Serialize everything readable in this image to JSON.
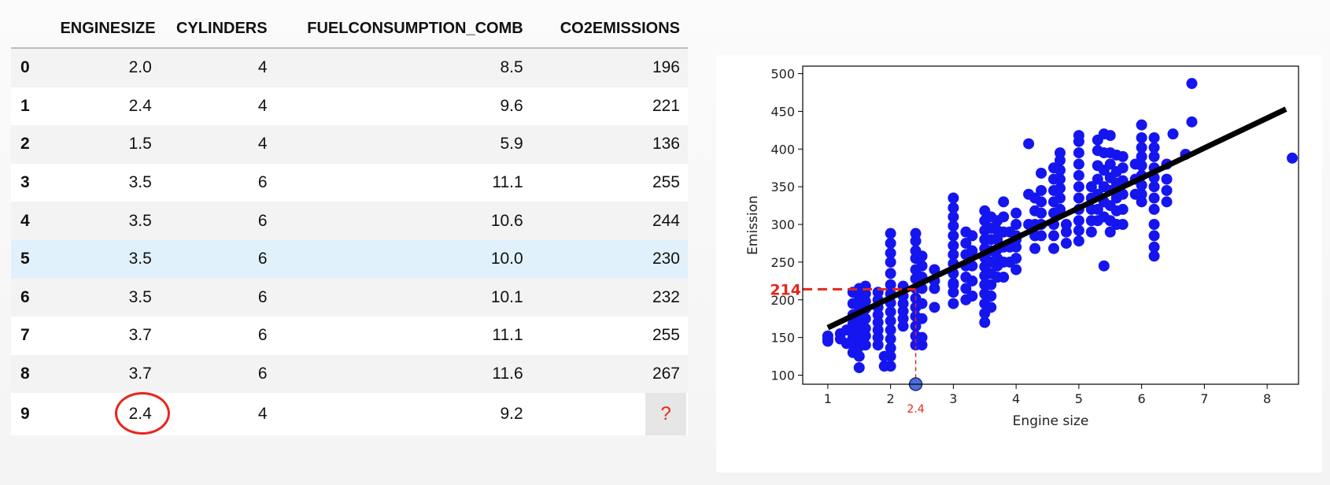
{
  "table": {
    "columns": [
      "",
      "ENGINESIZE",
      "CYLINDERS",
      "FUELCONSUMPTION_COMB",
      "CO2EMISSIONS"
    ],
    "rows": [
      {
        "idx": "0",
        "engine": "2.0",
        "cyl": "4",
        "fuel": "8.5",
        "co2": "196"
      },
      {
        "idx": "1",
        "engine": "2.4",
        "cyl": "4",
        "fuel": "9.6",
        "co2": "221"
      },
      {
        "idx": "2",
        "engine": "1.5",
        "cyl": "4",
        "fuel": "5.9",
        "co2": "136"
      },
      {
        "idx": "3",
        "engine": "3.5",
        "cyl": "6",
        "fuel": "11.1",
        "co2": "255"
      },
      {
        "idx": "4",
        "engine": "3.5",
        "cyl": "6",
        "fuel": "10.6",
        "co2": "244"
      },
      {
        "idx": "5",
        "engine": "3.5",
        "cyl": "6",
        "fuel": "10.0",
        "co2": "230"
      },
      {
        "idx": "6",
        "engine": "3.5",
        "cyl": "6",
        "fuel": "10.1",
        "co2": "232"
      },
      {
        "idx": "7",
        "engine": "3.7",
        "cyl": "6",
        "fuel": "11.1",
        "co2": "255"
      },
      {
        "idx": "8",
        "engine": "3.7",
        "cyl": "6",
        "fuel": "11.6",
        "co2": "267"
      },
      {
        "idx": "9",
        "engine": "2.4",
        "cyl": "4",
        "fuel": "9.2",
        "co2": "?"
      }
    ],
    "highlight_row": 5,
    "circled_value": "2.4",
    "colors": {
      "highlight": "#e1f1fb",
      "circle": "#e8251c",
      "question": "#e3271a"
    }
  },
  "chart_data": {
    "type": "scatter",
    "xlabel": "Engine size",
    "ylabel": "Emission",
    "xlim": [
      0.6,
      8.5
    ],
    "ylim": [
      88,
      510
    ],
    "xticks": [
      1,
      2,
      3,
      4,
      5,
      6,
      7,
      8
    ],
    "yticks": [
      100,
      150,
      200,
      250,
      300,
      350,
      400,
      450,
      500
    ],
    "point_color": "#1515f0",
    "fit_line": {
      "x": [
        1.0,
        8.3
      ],
      "y": [
        163,
        453
      ],
      "color": "#000000"
    },
    "prediction": {
      "x": 2.4,
      "y": 214,
      "x_label": "2.4",
      "y_label": "214",
      "color": "#e3271a",
      "marker_color": "#4f6fd8"
    },
    "points": [
      [
        1.0,
        148
      ],
      [
        1.0,
        152
      ],
      [
        1.0,
        145
      ],
      [
        1.2,
        155
      ],
      [
        1.2,
        148
      ],
      [
        1.3,
        160
      ],
      [
        1.3,
        142
      ],
      [
        1.4,
        150
      ],
      [
        1.4,
        158
      ],
      [
        1.4,
        168
      ],
      [
        1.4,
        180
      ],
      [
        1.4,
        195
      ],
      [
        1.4,
        210
      ],
      [
        1.4,
        140
      ],
      [
        1.4,
        130
      ],
      [
        1.5,
        110
      ],
      [
        1.5,
        125
      ],
      [
        1.5,
        138
      ],
      [
        1.5,
        145
      ],
      [
        1.5,
        155
      ],
      [
        1.5,
        165
      ],
      [
        1.5,
        175
      ],
      [
        1.5,
        185
      ],
      [
        1.5,
        195
      ],
      [
        1.5,
        205
      ],
      [
        1.5,
        215
      ],
      [
        1.6,
        140
      ],
      [
        1.6,
        152
      ],
      [
        1.6,
        162
      ],
      [
        1.6,
        175
      ],
      [
        1.6,
        188
      ],
      [
        1.6,
        198
      ],
      [
        1.6,
        208
      ],
      [
        1.6,
        218
      ],
      [
        1.8,
        140
      ],
      [
        1.8,
        150
      ],
      [
        1.8,
        160
      ],
      [
        1.8,
        170
      ],
      [
        1.8,
        180
      ],
      [
        1.8,
        190
      ],
      [
        1.8,
        200
      ],
      [
        1.8,
        210
      ],
      [
        1.8,
        150
      ],
      [
        2.0,
        112
      ],
      [
        2.0,
        125
      ],
      [
        2.0,
        136
      ],
      [
        2.0,
        148
      ],
      [
        2.0,
        160
      ],
      [
        2.0,
        172
      ],
      [
        2.0,
        184
      ],
      [
        2.0,
        196
      ],
      [
        2.0,
        208
      ],
      [
        2.0,
        220
      ],
      [
        2.0,
        235
      ],
      [
        2.0,
        250
      ],
      [
        2.0,
        262
      ],
      [
        2.0,
        275
      ],
      [
        2.0,
        288
      ],
      [
        1.9,
        112
      ],
      [
        1.9,
        125
      ],
      [
        2.2,
        165
      ],
      [
        2.2,
        175
      ],
      [
        2.2,
        185
      ],
      [
        2.2,
        195
      ],
      [
        2.2,
        205
      ],
      [
        2.2,
        218
      ],
      [
        2.4,
        140
      ],
      [
        2.4,
        152
      ],
      [
        2.4,
        165
      ],
      [
        2.4,
        178
      ],
      [
        2.4,
        190
      ],
      [
        2.4,
        202
      ],
      [
        2.4,
        215
      ],
      [
        2.4,
        228
      ],
      [
        2.4,
        240
      ],
      [
        2.4,
        255
      ],
      [
        2.4,
        265
      ],
      [
        2.4,
        278
      ],
      [
        2.4,
        288
      ],
      [
        2.5,
        140
      ],
      [
        2.5,
        150
      ],
      [
        2.5,
        175
      ],
      [
        2.5,
        195
      ],
      [
        2.5,
        215
      ],
      [
        2.5,
        230
      ],
      [
        2.5,
        245
      ],
      [
        2.5,
        258
      ],
      [
        2.7,
        190
      ],
      [
        2.7,
        215
      ],
      [
        2.7,
        225
      ],
      [
        2.7,
        240
      ],
      [
        3.0,
        195
      ],
      [
        3.0,
        210
      ],
      [
        3.0,
        222
      ],
      [
        3.0,
        235
      ],
      [
        3.0,
        248
      ],
      [
        3.0,
        260
      ],
      [
        3.0,
        272
      ],
      [
        3.0,
        285
      ],
      [
        3.0,
        298
      ],
      [
        3.0,
        310
      ],
      [
        3.0,
        322
      ],
      [
        3.0,
        335
      ],
      [
        3.0,
        220
      ],
      [
        3.2,
        200
      ],
      [
        3.2,
        215
      ],
      [
        3.2,
        230
      ],
      [
        3.2,
        245
      ],
      [
        3.2,
        260
      ],
      [
        3.2,
        275
      ],
      [
        3.2,
        290
      ],
      [
        3.3,
        205
      ],
      [
        3.3,
        225
      ],
      [
        3.3,
        245
      ],
      [
        3.3,
        265
      ],
      [
        3.3,
        285
      ],
      [
        3.5,
        170
      ],
      [
        3.5,
        182
      ],
      [
        3.5,
        195
      ],
      [
        3.5,
        208
      ],
      [
        3.5,
        220
      ],
      [
        3.5,
        232
      ],
      [
        3.5,
        244
      ],
      [
        3.5,
        256
      ],
      [
        3.5,
        268
      ],
      [
        3.5,
        280
      ],
      [
        3.5,
        292
      ],
      [
        3.5,
        305
      ],
      [
        3.5,
        318
      ],
      [
        3.6,
        190
      ],
      [
        3.6,
        205
      ],
      [
        3.6,
        220
      ],
      [
        3.6,
        235
      ],
      [
        3.6,
        250
      ],
      [
        3.6,
        265
      ],
      [
        3.6,
        280
      ],
      [
        3.6,
        295
      ],
      [
        3.6,
        310
      ],
      [
        3.7,
        230
      ],
      [
        3.7,
        245
      ],
      [
        3.7,
        255
      ],
      [
        3.7,
        267
      ],
      [
        3.7,
        280
      ],
      [
        3.7,
        292
      ],
      [
        3.7,
        305
      ],
      [
        3.8,
        230
      ],
      [
        3.8,
        250
      ],
      [
        3.8,
        270
      ],
      [
        3.8,
        290
      ],
      [
        3.8,
        310
      ],
      [
        3.8,
        330
      ],
      [
        3.9,
        250
      ],
      [
        3.9,
        270
      ],
      [
        3.9,
        290
      ],
      [
        4.0,
        240
      ],
      [
        4.0,
        255
      ],
      [
        4.0,
        270
      ],
      [
        4.0,
        285
      ],
      [
        4.0,
        300
      ],
      [
        4.0,
        315
      ],
      [
        4.0,
        280
      ],
      [
        4.2,
        300
      ],
      [
        4.2,
        407
      ],
      [
        4.2,
        340
      ],
      [
        4.3,
        268
      ],
      [
        4.3,
        285
      ],
      [
        4.3,
        300
      ],
      [
        4.3,
        318
      ],
      [
        4.3,
        335
      ],
      [
        4.4,
        285
      ],
      [
        4.4,
        300
      ],
      [
        4.4,
        315
      ],
      [
        4.4,
        330
      ],
      [
        4.4,
        345
      ],
      [
        4.4,
        368
      ],
      [
        4.6,
        268
      ],
      [
        4.6,
        285
      ],
      [
        4.6,
        300
      ],
      [
        4.6,
        315
      ],
      [
        4.6,
        330
      ],
      [
        4.6,
        345
      ],
      [
        4.6,
        360
      ],
      [
        4.6,
        375
      ],
      [
        4.7,
        320
      ],
      [
        4.7,
        335
      ],
      [
        4.7,
        348
      ],
      [
        4.7,
        360
      ],
      [
        4.7,
        372
      ],
      [
        4.7,
        385
      ],
      [
        4.7,
        395
      ],
      [
        4.8,
        275
      ],
      [
        4.8,
        290
      ],
      [
        4.8,
        300
      ],
      [
        5.0,
        278
      ],
      [
        5.0,
        292
      ],
      [
        5.0,
        305
      ],
      [
        5.0,
        320
      ],
      [
        5.0,
        335
      ],
      [
        5.0,
        350
      ],
      [
        5.0,
        365
      ],
      [
        5.0,
        380
      ],
      [
        5.0,
        395
      ],
      [
        5.0,
        410
      ],
      [
        5.0,
        418
      ],
      [
        5.2,
        290
      ],
      [
        5.2,
        305
      ],
      [
        5.2,
        320
      ],
      [
        5.2,
        335
      ],
      [
        5.2,
        350
      ],
      [
        5.3,
        305
      ],
      [
        5.3,
        320
      ],
      [
        5.3,
        340
      ],
      [
        5.3,
        360
      ],
      [
        5.3,
        378
      ],
      [
        5.3,
        398
      ],
      [
        5.3,
        412
      ],
      [
        5.4,
        245
      ],
      [
        5.4,
        310
      ],
      [
        5.4,
        330
      ],
      [
        5.4,
        350
      ],
      [
        5.4,
        372
      ],
      [
        5.4,
        395
      ],
      [
        5.4,
        420
      ],
      [
        5.5,
        290
      ],
      [
        5.5,
        305
      ],
      [
        5.5,
        325
      ],
      [
        5.5,
        345
      ],
      [
        5.5,
        362
      ],
      [
        5.5,
        380
      ],
      [
        5.5,
        395
      ],
      [
        5.5,
        418
      ],
      [
        5.6,
        300
      ],
      [
        5.6,
        318
      ],
      [
        5.6,
        335
      ],
      [
        5.6,
        355
      ],
      [
        5.6,
        370
      ],
      [
        5.6,
        392
      ],
      [
        5.7,
        300
      ],
      [
        5.7,
        320
      ],
      [
        5.7,
        340
      ],
      [
        5.7,
        358
      ],
      [
        5.7,
        375
      ],
      [
        5.7,
        390
      ],
      [
        5.9,
        340
      ],
      [
        5.9,
        360
      ],
      [
        5.9,
        380
      ],
      [
        6.0,
        330
      ],
      [
        6.0,
        340
      ],
      [
        6.0,
        352
      ],
      [
        6.0,
        365
      ],
      [
        6.0,
        378
      ],
      [
        6.0,
        390
      ],
      [
        6.0,
        402
      ],
      [
        6.0,
        415
      ],
      [
        6.0,
        432
      ],
      [
        6.2,
        258
      ],
      [
        6.2,
        270
      ],
      [
        6.2,
        285
      ],
      [
        6.2,
        300
      ],
      [
        6.2,
        320
      ],
      [
        6.2,
        335
      ],
      [
        6.2,
        350
      ],
      [
        6.2,
        362
      ],
      [
        6.2,
        375
      ],
      [
        6.2,
        390
      ],
      [
        6.2,
        402
      ],
      [
        6.2,
        415
      ],
      [
        6.4,
        330
      ],
      [
        6.4,
        345
      ],
      [
        6.4,
        360
      ],
      [
        6.4,
        380
      ],
      [
        6.5,
        420
      ],
      [
        6.7,
        393
      ],
      [
        6.8,
        487
      ],
      [
        6.8,
        436
      ],
      [
        8.4,
        388
      ]
    ]
  }
}
